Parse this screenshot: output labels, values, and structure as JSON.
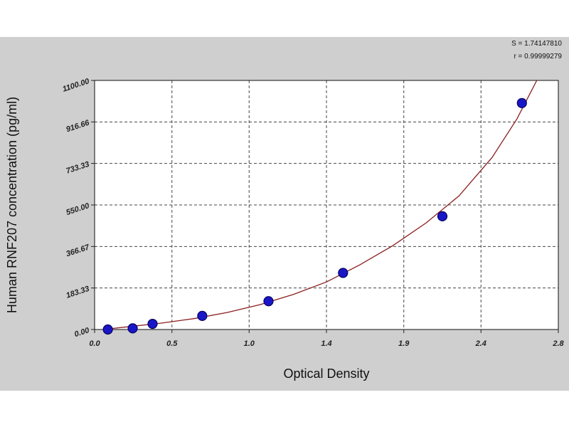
{
  "chart_data": {
    "type": "scatter",
    "xlabel": "Optical Density",
    "ylabel": "Human RNF207 concentration (pg/ml)",
    "xlim": [
      0.0,
      2.8
    ],
    "ylim": [
      0,
      1100
    ],
    "x_ticks": [
      "0.0",
      "0.5",
      "1.0",
      "1.4",
      "1.9",
      "2.4",
      "2.8"
    ],
    "x_tick_values": [
      0.0,
      0.467,
      0.933,
      1.4,
      1.867,
      2.333,
      2.8
    ],
    "y_ticks": [
      "0.00",
      "183.33",
      "366.67",
      "550.00",
      "733.33",
      "916.66",
      "1100.00"
    ],
    "y_tick_values": [
      0,
      183.33,
      366.67,
      550,
      733.33,
      916.66,
      1100
    ],
    "grid": true,
    "stats": {
      "s": "S = 1.74147810",
      "r": "r = 0.99999279"
    },
    "series": [
      {
        "kind": "points",
        "x": [
          0.08,
          0.23,
          0.35,
          0.65,
          1.05,
          1.5,
          2.1,
          2.58
        ],
        "y": [
          0,
          5,
          25,
          60,
          125,
          250,
          500,
          1000
        ]
      },
      {
        "kind": "fit-curve",
        "x": [
          0.05,
          0.2,
          0.4,
          0.6,
          0.8,
          1.0,
          1.2,
          1.4,
          1.6,
          1.8,
          2.0,
          2.2,
          2.4,
          2.55,
          2.67
        ],
        "y": [
          0,
          12,
          28,
          48,
          75,
          110,
          155,
          210,
          285,
          370,
          470,
          590,
          760,
          930,
          1100
        ]
      }
    ],
    "colors": {
      "curve": "#8b1e1e",
      "point": "#1a16c8",
      "point_edge": "#07045e",
      "grid": "#444444"
    }
  }
}
